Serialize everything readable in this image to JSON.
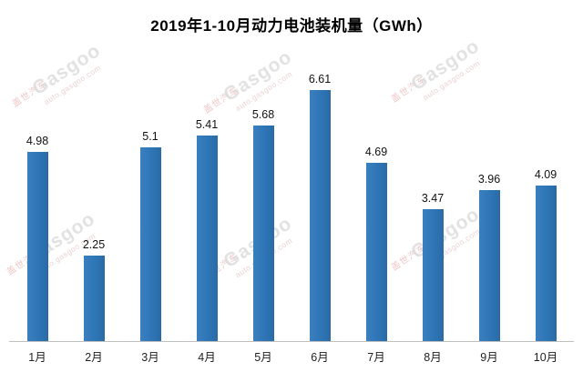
{
  "chart_data": {
    "type": "bar",
    "title": "2019年1-10月动力电池装机量（GWh）",
    "categories": [
      "1月",
      "2月",
      "3月",
      "4月",
      "5月",
      "6月",
      "7月",
      "8月",
      "9月",
      "10月"
    ],
    "values": [
      4.98,
      2.25,
      5.1,
      5.41,
      5.68,
      6.61,
      4.69,
      3.47,
      3.96,
      4.09
    ],
    "xlabel": "",
    "ylabel": "",
    "ylim": [
      0,
      7
    ],
    "bar_color": "#2E75B6",
    "grid": false,
    "legend": false,
    "data_labels": true
  },
  "watermark": {
    "cn": "盖世汽车",
    "brand": "Gasgoo",
    "url": "auto.gasgoo.com"
  }
}
